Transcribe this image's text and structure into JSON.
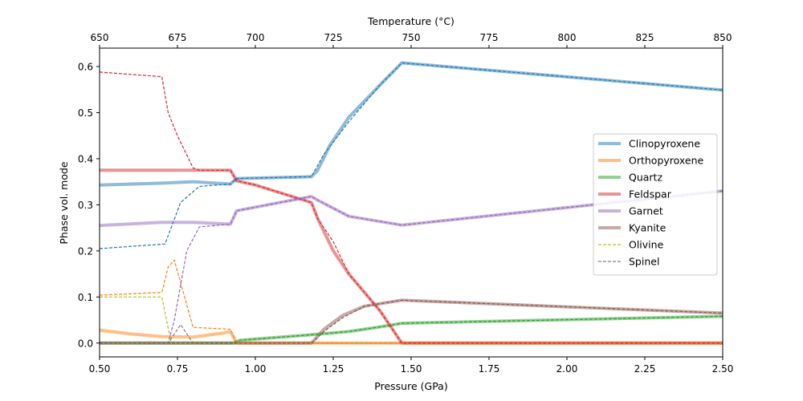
{
  "chart_data": {
    "type": "line",
    "xlabel": "Pressure (GPa)",
    "ylabel": "Phase vol. mode",
    "top_xlabel": "Temperature (°C)",
    "xlim": [
      0.5,
      2.5
    ],
    "ylim": [
      -0.03,
      0.64
    ],
    "top_xlim": [
      650,
      850
    ],
    "x_ticks": [
      0.5,
      0.75,
      1.0,
      1.25,
      1.5,
      1.75,
      2.0,
      2.25,
      2.5
    ],
    "x_tick_labels": [
      "0.50",
      "0.75",
      "1.00",
      "1.25",
      "1.50",
      "1.75",
      "2.00",
      "2.25",
      "2.50"
    ],
    "y_ticks": [
      0.0,
      0.1,
      0.2,
      0.3,
      0.4,
      0.5,
      0.6
    ],
    "y_tick_labels": [
      "0.0",
      "0.1",
      "0.2",
      "0.3",
      "0.4",
      "0.5",
      "0.6"
    ],
    "top_x_ticks": [
      650,
      675,
      700,
      725,
      750,
      775,
      800,
      825,
      850
    ],
    "top_x_tick_labels": [
      "650",
      "675",
      "700",
      "725",
      "750",
      "775",
      "800",
      "825",
      "850"
    ],
    "legend_position": "right",
    "series": [
      {
        "name": "Clinopyroxene",
        "style": "solid",
        "color": "#1f77b4",
        "x": [
          0.5,
          0.7,
          0.8,
          0.92,
          0.94,
          1.18,
          1.2,
          1.24,
          1.3,
          1.4,
          1.47,
          2.5
        ],
        "y": [
          0.343,
          0.347,
          0.35,
          0.345,
          0.357,
          0.361,
          0.375,
          0.43,
          0.49,
          0.56,
          0.608,
          0.549
        ]
      },
      {
        "name": "Orthopyroxene",
        "style": "solid",
        "color": "#ff7f0e",
        "x": [
          0.5,
          0.6,
          0.7,
          0.8,
          0.9,
          0.92,
          0.94,
          2.5
        ],
        "y": [
          0.028,
          0.02,
          0.014,
          0.013,
          0.022,
          0.025,
          0.0,
          0.0
        ]
      },
      {
        "name": "Quartz",
        "style": "solid",
        "color": "#2ca02c",
        "x": [
          0.5,
          0.93,
          0.95,
          1.18,
          1.3,
          1.4,
          1.47,
          2.5
        ],
        "y": [
          0.0,
          0.0,
          0.006,
          0.018,
          0.025,
          0.035,
          0.043,
          0.058
        ]
      },
      {
        "name": "Feldspar",
        "style": "solid",
        "color": "#d62728",
        "x": [
          0.5,
          0.92,
          0.94,
          1.0,
          1.18,
          1.2,
          1.25,
          1.3,
          1.4,
          1.47,
          2.5
        ],
        "y": [
          0.375,
          0.375,
          0.352,
          0.343,
          0.305,
          0.27,
          0.2,
          0.15,
          0.07,
          0.0,
          0.0
        ]
      },
      {
        "name": "Garnet",
        "style": "solid",
        "color": "#9467bd",
        "x": [
          0.5,
          0.7,
          0.8,
          0.92,
          0.94,
          1.18,
          1.2,
          1.3,
          1.47,
          2.5
        ],
        "y": [
          0.255,
          0.262,
          0.262,
          0.258,
          0.287,
          0.318,
          0.31,
          0.275,
          0.256,
          0.33
        ]
      },
      {
        "name": "Kyanite",
        "style": "solid",
        "color": "#8c564b",
        "x": [
          0.5,
          1.18,
          1.22,
          1.28,
          1.35,
          1.47,
          2.5
        ],
        "y": [
          0.0,
          0.0,
          0.03,
          0.06,
          0.08,
          0.093,
          0.065
        ]
      },
      {
        "name": "Olivine",
        "style": "dashed",
        "color": "#bcbd22",
        "x": [
          0.5,
          0.7,
          0.73,
          2.5
        ],
        "y": [
          0.1,
          0.1,
          0.0,
          0.0
        ]
      },
      {
        "name": "Spinel",
        "style": "dashed",
        "color": "#7f7f7f",
        "x": [
          0.5,
          0.72,
          0.76,
          0.8,
          2.5
        ],
        "y": [
          0.0,
          0.0,
          0.04,
          0.0,
          0.0
        ]
      },
      {
        "name": "",
        "style": "dashed",
        "color": "#1f77b4",
        "x": [
          0.5,
          0.71,
          0.76,
          0.82,
          0.92,
          0.94,
          1.18,
          1.22,
          1.3,
          1.4,
          1.47,
          2.5
        ],
        "y": [
          0.205,
          0.215,
          0.305,
          0.34,
          0.345,
          0.357,
          0.361,
          0.41,
          0.48,
          0.56,
          0.608,
          0.549
        ]
      },
      {
        "name": "",
        "style": "dashed",
        "color": "#ff7f0e",
        "x": [
          0.5,
          0.7,
          0.72,
          0.74,
          0.8,
          0.92,
          0.94,
          2.5
        ],
        "y": [
          0.104,
          0.11,
          0.165,
          0.18,
          0.034,
          0.03,
          0.0,
          0.0
        ]
      },
      {
        "name": "",
        "style": "dashed",
        "color": "#2ca02c",
        "x": [
          0.5,
          0.93,
          0.95,
          1.18,
          1.3,
          1.4,
          1.47,
          2.5
        ],
        "y": [
          0.0,
          0.0,
          0.006,
          0.018,
          0.025,
          0.035,
          0.043,
          0.058
        ]
      },
      {
        "name": "",
        "style": "dashed",
        "color": "#d62728",
        "x": [
          0.5,
          0.7,
          0.72,
          0.75,
          0.8,
          0.82,
          0.92,
          0.94,
          1.0,
          1.18,
          1.2,
          1.25,
          1.3,
          1.4,
          1.47,
          2.5
        ],
        "y": [
          0.588,
          0.578,
          0.5,
          0.45,
          0.38,
          0.375,
          0.375,
          0.352,
          0.343,
          0.305,
          0.27,
          0.22,
          0.15,
          0.07,
          0.0,
          0.0
        ]
      },
      {
        "name": "",
        "style": "dashed",
        "color": "#9467bd",
        "x": [
          0.5,
          0.72,
          0.74,
          0.78,
          0.82,
          0.92,
          0.94,
          1.18,
          1.2,
          1.3,
          1.47,
          2.5
        ],
        "y": [
          0.0,
          0.0,
          0.05,
          0.2,
          0.252,
          0.258,
          0.287,
          0.318,
          0.31,
          0.275,
          0.256,
          0.33
        ]
      },
      {
        "name": "",
        "style": "dashed",
        "color": "#8c564b",
        "x": [
          0.5,
          1.18,
          1.22,
          1.28,
          1.35,
          1.47,
          2.5
        ],
        "y": [
          0.0,
          0.0,
          0.025,
          0.055,
          0.08,
          0.093,
          0.065
        ]
      }
    ]
  }
}
